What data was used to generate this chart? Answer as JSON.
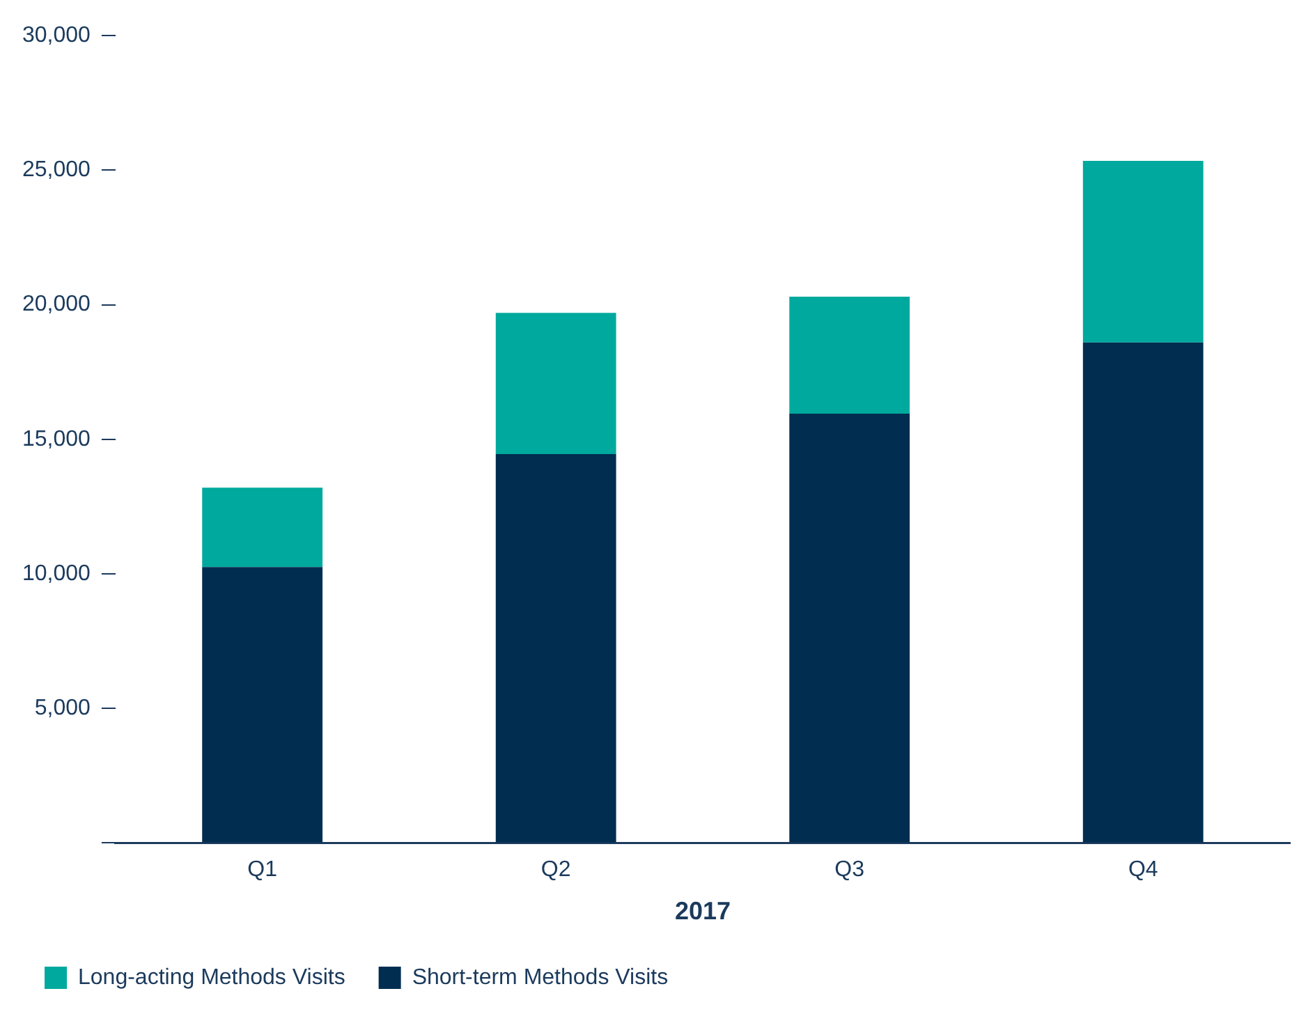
{
  "chart_data": {
    "type": "bar",
    "xlabel": "2017",
    "categories": [
      "Q1",
      "Q2",
      "Q3",
      "Q4"
    ],
    "stacked": true,
    "ylim": [
      0,
      30000
    ],
    "yticks": [
      {
        "value": 0,
        "label": null
      },
      {
        "value": 5000,
        "label": "5,000"
      },
      {
        "value": 10000,
        "label": "10,000"
      },
      {
        "value": 15000,
        "label": "15,000"
      },
      {
        "value": 20000,
        "label": "20,000"
      },
      {
        "value": 25000,
        "label": "25,000"
      },
      {
        "value": 30000,
        "label": "30,000"
      }
    ],
    "grid": false,
    "legend": "bottom left",
    "series": [
      {
        "name": "Short-term Methods Visits",
        "color": "#002d50",
        "values": [
          10250,
          14450,
          15950,
          18600
        ]
      },
      {
        "name": "Long-acting Methods Visits",
        "color": "#00a99d",
        "values": [
          2950,
          5250,
          4350,
          6750
        ]
      }
    ]
  }
}
